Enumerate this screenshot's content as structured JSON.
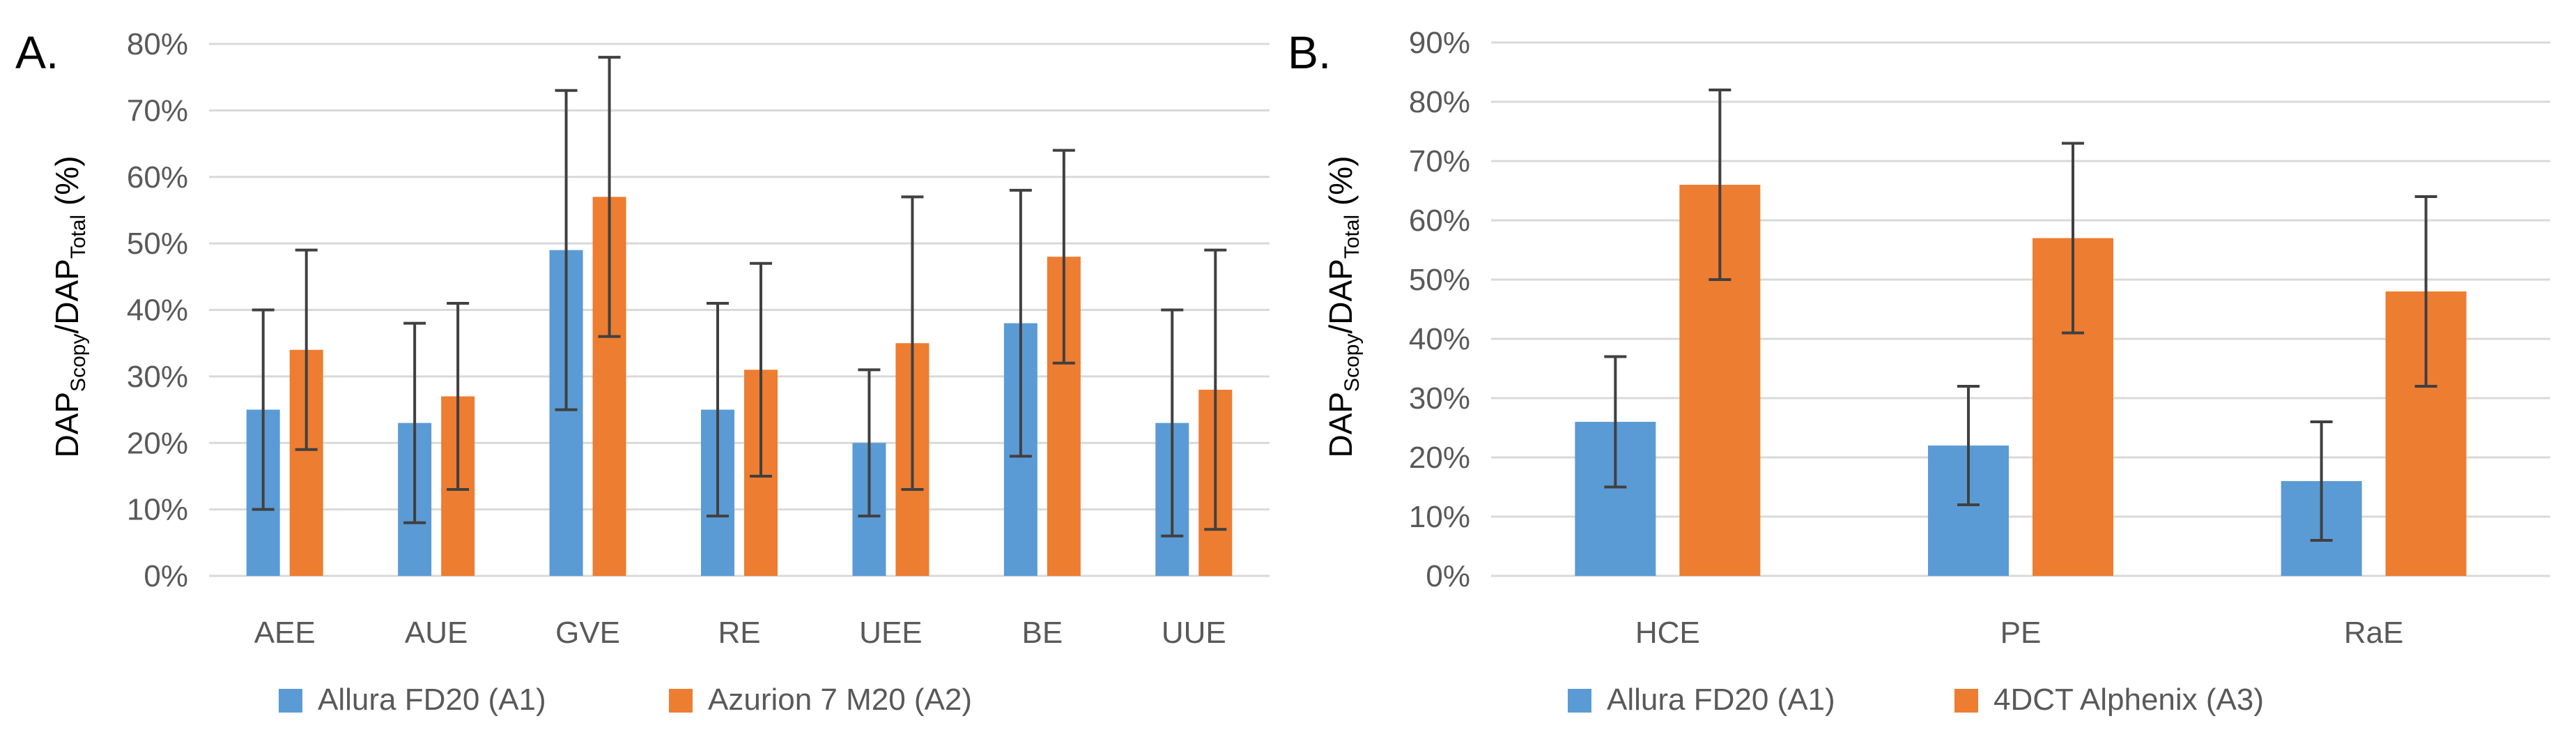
{
  "chart_data": [
    {
      "type": "bar",
      "panel_label": "A.",
      "ylabel": {
        "main1": "DAP",
        "sub1": "Scopy",
        "mid": "/DAP",
        "sub2": "Total",
        "end": " (%)"
      },
      "ylim": [
        0,
        80
      ],
      "yticks": [
        0,
        10,
        20,
        30,
        40,
        50,
        60,
        70,
        80
      ],
      "ytick_labels": [
        "0%",
        "10%",
        "20%",
        "30%",
        "40%",
        "50%",
        "60%",
        "70%",
        "80%"
      ],
      "grid": true,
      "legend_position": "bottom",
      "categories": [
        "AEE",
        "AUE",
        "GVE",
        "RE",
        "UEE",
        "BE",
        "UUE"
      ],
      "series": [
        {
          "name": "Allura FD20 (A1)",
          "color": "#5b9bd5",
          "values": [
            25,
            23,
            49,
            25,
            20,
            38,
            23
          ],
          "err_low": [
            10,
            8,
            25,
            9,
            9,
            18,
            6
          ],
          "err_high": [
            40,
            38,
            73,
            41,
            31,
            58,
            40
          ]
        },
        {
          "name": "Azurion 7 M20 (A2)",
          "color": "#ed7d31",
          "values": [
            34,
            27,
            57,
            31,
            35,
            48,
            28
          ],
          "err_low": [
            19,
            13,
            36,
            15,
            13,
            32,
            7
          ],
          "err_high": [
            49,
            41,
            78,
            47,
            57,
            64,
            49
          ]
        }
      ]
    },
    {
      "type": "bar",
      "panel_label": "B.",
      "ylabel": {
        "main1": "DAP",
        "sub1": "Scopy",
        "mid": "/DAP",
        "sub2": "Total",
        "end": " (%)"
      },
      "ylim": [
        0,
        90
      ],
      "yticks": [
        0,
        10,
        20,
        30,
        40,
        50,
        60,
        70,
        80,
        90
      ],
      "ytick_labels": [
        "0%",
        "10%",
        "20%",
        "30%",
        "40%",
        "50%",
        "60%",
        "70%",
        "80%",
        "90%"
      ],
      "grid": true,
      "legend_position": "bottom",
      "categories": [
        "HCE",
        "PE",
        "RaE"
      ],
      "series": [
        {
          "name": "Allura FD20 (A1)",
          "color": "#5b9bd5",
          "values": [
            26,
            22,
            16
          ],
          "err_low": [
            15,
            12,
            6
          ],
          "err_high": [
            37,
            32,
            26
          ]
        },
        {
          "name": "4DCT Alphenix (A3)",
          "color": "#ed7d31",
          "values": [
            66,
            57,
            48
          ],
          "err_low": [
            50,
            41,
            32
          ],
          "err_high": [
            82,
            73,
            64
          ]
        }
      ]
    }
  ]
}
